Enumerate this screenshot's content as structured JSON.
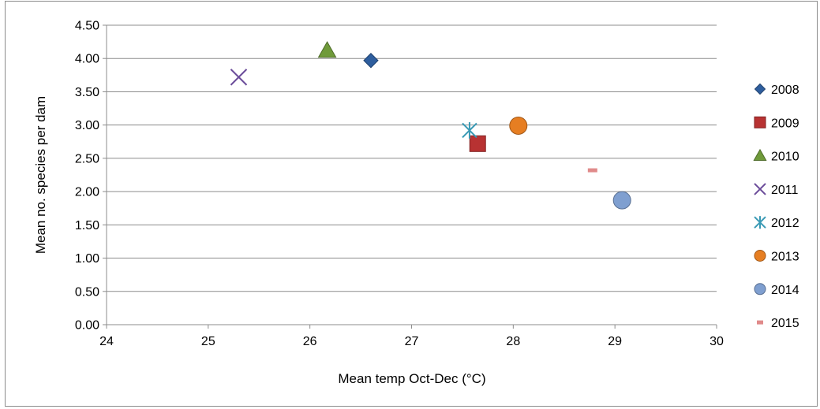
{
  "chart_data": {
    "type": "scatter",
    "title": "",
    "xlabel": "Mean temp Oct-Dec (°C)",
    "ylabel": "Mean no. species per dam",
    "xlim": [
      24,
      30
    ],
    "ylim": [
      0,
      4.5
    ],
    "x_ticks": [
      "24",
      "25",
      "26",
      "27",
      "28",
      "29",
      "30"
    ],
    "y_ticks": [
      "0.00",
      "0.50",
      "1.00",
      "1.50",
      "2.00",
      "2.50",
      "3.00",
      "3.50",
      "4.00",
      "4.50"
    ],
    "grid": "horizontal",
    "legend_position": "right",
    "series": [
      {
        "name": "2008",
        "marker": "diamond",
        "color": "#2e5e9e",
        "x": 26.6,
        "y": 3.97
      },
      {
        "name": "2009",
        "marker": "square",
        "color": "#b83232",
        "x": 27.65,
        "y": 2.72
      },
      {
        "name": "2010",
        "marker": "triangle",
        "color": "#6f9a3a",
        "x": 26.17,
        "y": 4.12
      },
      {
        "name": "2011",
        "marker": "x",
        "color": "#6b4c9a",
        "x": 25.3,
        "y": 3.72
      },
      {
        "name": "2012",
        "marker": "asterisk",
        "color": "#3a9ab5",
        "x": 27.57,
        "y": 2.92
      },
      {
        "name": "2013",
        "marker": "circle",
        "color": "#e67e22",
        "x": 28.05,
        "y": 2.99
      },
      {
        "name": "2014",
        "marker": "circle",
        "color": "#7f9fd0",
        "x": 29.07,
        "y": 1.87
      },
      {
        "name": "2015",
        "marker": "dash",
        "color": "#e08a8a",
        "x": 28.78,
        "y": 2.32
      }
    ]
  }
}
